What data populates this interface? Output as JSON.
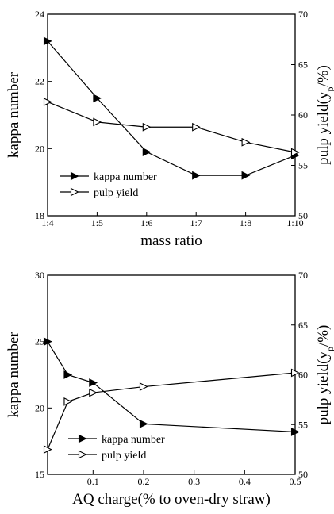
{
  "chart_data": [
    {
      "type": "line",
      "title": "",
      "xlabel": "mass ratio",
      "ylabel": "kappa number",
      "y2label": "pulp yield(y_p/%)",
      "categories": [
        "1:4",
        "1:5",
        "1:6",
        "1:7",
        "1:8",
        "1:10"
      ],
      "ylim": [
        18,
        24
      ],
      "y2lim": [
        50,
        70
      ],
      "yticks": [
        "18",
        "20",
        "22",
        "24"
      ],
      "y2ticks": [
        "50",
        "55",
        "60",
        "65",
        "70"
      ],
      "legend_position": "lower-left",
      "series": [
        {
          "name": "kappa number",
          "axis": "left",
          "marker": "filled-right-triangle",
          "values": [
            23.2,
            21.5,
            19.9,
            19.2,
            19.2,
            19.8
          ]
        },
        {
          "name": "pulp yield",
          "axis": "right",
          "marker": "open-right-triangle",
          "values": [
            61.3,
            59.3,
            58.8,
            58.8,
            57.3,
            56.3
          ]
        }
      ]
    },
    {
      "type": "line",
      "title": "",
      "xlabel": "AQ charge(% to oven-dry straw)",
      "ylabel": "kappa number",
      "y2label": "pulp yield(y_p/%)",
      "xlim": [
        0.01,
        0.5
      ],
      "xticks": [
        "0.1",
        "0.2",
        "0.3",
        "0.4",
        "0.5"
      ],
      "ylim": [
        15,
        30
      ],
      "y2lim": [
        50,
        70
      ],
      "yticks": [
        "15",
        "20",
        "25",
        "30"
      ],
      "y2ticks": [
        "50",
        "55",
        "60",
        "65",
        "70"
      ],
      "legend_position": "lower-center",
      "series": [
        {
          "name": "kappa number",
          "axis": "left",
          "marker": "filled-right-triangle",
          "x": [
            0.01,
            0.05,
            0.1,
            0.2,
            0.5
          ],
          "values": [
            25.0,
            22.5,
            21.9,
            18.8,
            18.2
          ]
        },
        {
          "name": "pulp yield",
          "axis": "right",
          "marker": "open-right-triangle",
          "x": [
            0.01,
            0.05,
            0.1,
            0.2,
            0.5
          ],
          "values": [
            52.5,
            57.3,
            58.2,
            58.8,
            60.2
          ]
        }
      ]
    }
  ]
}
